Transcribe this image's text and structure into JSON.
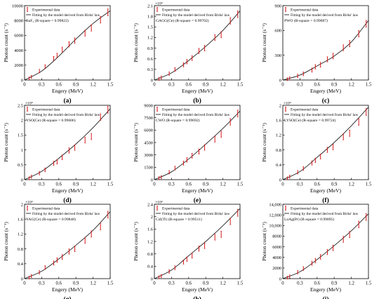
{
  "figure": {
    "colors": {
      "data": "#d7191c",
      "fit": "#222222",
      "axis": "#000000"
    },
    "panels": [
      {
        "letter": "(a)",
        "multiplier": "",
        "legend": [
          "Experimental data",
          "Fitting by the model derived from Birks' law"
        ],
        "r_label": "BaF₂ (R-square = 0.99822)",
        "chart_data": {
          "type": "scatter",
          "xlabel": "Engery (MeV)",
          "ylabel": "Photon count (s⁻¹)",
          "xlim": [
            0,
            1.5
          ],
          "ylim": [
            0,
            10000
          ],
          "xticks": [
            "0",
            "0.3",
            "0.6",
            "0.9",
            "1.2",
            "1.5"
          ],
          "yticks": [
            "0",
            "2000",
            "4000",
            "6000",
            "8000",
            "10000"
          ],
          "series": [
            {
              "name": "Experimental data",
              "x": [
                0.08,
                0.12,
                0.26,
                0.36,
                0.51,
                0.57,
                0.66,
                0.78,
                0.88,
                1.06,
                1.17,
                1.33,
                1.46
              ],
              "y": [
                220,
                420,
                1200,
                1800,
                2900,
                3300,
                4100,
                4800,
                5300,
                6300,
                7000,
                8100,
                9100
              ]
            },
            {
              "name": "Fitting by the model derived from Birks' law",
              "x": [
                0,
                0.3,
                0.6,
                0.9,
                1.2,
                1.5
              ],
              "y": [
                0,
                1200,
                3200,
                5500,
                7600,
                9300
              ]
            }
          ]
        }
      },
      {
        "letter": "(b)",
        "multiplier": "×10⁴",
        "legend": [
          "Experimental data",
          "Fitting by the model derived from Birks' law"
        ],
        "r_label": "GAGG(Ce) (R-square = 0.99702)",
        "chart_data": {
          "type": "scatter",
          "xlabel": "Engery (MeV)",
          "ylabel": "Photon count (s⁻¹)",
          "xlim": [
            0,
            1.5
          ],
          "ylim": [
            0,
            2.1
          ],
          "xticks": [
            "0",
            "0.3",
            "0.6",
            "0.9",
            "1.2",
            "1.5"
          ],
          "yticks": [
            "0",
            "0.3",
            "0.6",
            "0.9",
            "1.2",
            "1.5",
            "1.8",
            "2.1"
          ],
          "series": [
            {
              "name": "Experimental data",
              "x": [
                0.08,
                0.12,
                0.26,
                0.36,
                0.51,
                0.57,
                0.66,
                0.78,
                0.88,
                1.06,
                1.17,
                1.33,
                1.46
              ],
              "y": [
                0.03,
                0.07,
                0.18,
                0.3,
                0.43,
                0.52,
                0.62,
                0.82,
                0.9,
                1.2,
                1.28,
                1.67,
                1.86
              ]
            },
            {
              "name": "Fitting by the model derived from Birks' law",
              "x": [
                0,
                0.3,
                0.6,
                0.9,
                1.2,
                1.5
              ],
              "y": [
                0,
                0.2,
                0.55,
                0.95,
                1.4,
                1.95
              ]
            }
          ]
        }
      },
      {
        "letter": "(c)",
        "multiplier": "",
        "legend": [
          "Experimental data",
          "Fitting by the model derived from Birks' law"
        ],
        "r_label": "PWO (R-square = 0.99687)",
        "chart_data": {
          "type": "scatter",
          "xlabel": "Engery (MeV)",
          "ylabel": "Photon count (s⁻¹)",
          "xlim": [
            0,
            1.5
          ],
          "ylim": [
            0,
            900
          ],
          "xticks": [
            "0",
            "0.3",
            "0.6",
            "0.9",
            "1.2",
            "1.5"
          ],
          "yticks": [
            "0",
            "300",
            "600",
            "900"
          ],
          "series": [
            {
              "name": "Experimental data",
              "x": [
                0.08,
                0.12,
                0.26,
                0.36,
                0.51,
                0.57,
                0.66,
                0.78,
                0.88,
                1.06,
                1.17,
                1.33,
                1.46
              ],
              "y": [
                10,
                20,
                50,
                75,
                120,
                160,
                185,
                250,
                290,
                390,
                440,
                560,
                680
              ]
            },
            {
              "name": "Fitting by the model derived from Birks' law",
              "x": [
                0,
                0.3,
                0.6,
                0.9,
                1.2,
                1.5
              ],
              "y": [
                0,
                60,
                170,
                290,
                460,
                720
              ]
            }
          ]
        }
      },
      {
        "letter": "(d)",
        "multiplier": "×10⁴",
        "legend": [
          "Experimental data",
          "Fitting by the model derived from Birks' law"
        ],
        "r_label": "YSO(Ce) (R-square = 0.99606)",
        "chart_data": {
          "type": "scatter",
          "xlabel": "Engery (MeV)",
          "ylabel": "Photon count (s⁻¹)",
          "xlim": [
            0,
            1.5
          ],
          "ylim": [
            0,
            2.5
          ],
          "xticks": [
            "0",
            "0.3",
            "0.6",
            "0.9",
            "1.2",
            "1.5"
          ],
          "yticks": [
            "0",
            "0.5",
            "1",
            "1.5",
            "2",
            "2.5"
          ],
          "series": [
            {
              "name": "Experimental data",
              "x": [
                0.08,
                0.12,
                0.26,
                0.36,
                0.51,
                0.57,
                0.66,
                0.78,
                0.88,
                1.06,
                1.17,
                1.33,
                1.46
              ],
              "y": [
                0.05,
                0.1,
                0.22,
                0.33,
                0.55,
                0.6,
                0.75,
                0.98,
                1.08,
                1.33,
                1.45,
                2.1,
                2.35
              ]
            },
            {
              "name": "Fitting by the model derived from Birks' law",
              "x": [
                0,
                0.3,
                0.6,
                0.9,
                1.2,
                1.5
              ],
              "y": [
                0,
                0.28,
                0.72,
                1.2,
                1.75,
                2.38
              ]
            }
          ]
        }
      },
      {
        "letter": "(e)",
        "multiplier": "",
        "legend": [
          "Experimental data",
          "Fitting by the model derived from Birks' law"
        ],
        "r_label": "CWO (R-square = 0.99692)",
        "chart_data": {
          "type": "scatter",
          "xlabel": "Engery (MeV)",
          "ylabel": "Photon count (s⁻¹)",
          "xlim": [
            0,
            1.5
          ],
          "ylim": [
            0,
            9000
          ],
          "xticks": [
            "0",
            "0.3",
            "0.6",
            "0.9",
            "1.2",
            "1.5"
          ],
          "yticks": [
            "0",
            "1500",
            "3000",
            "4500",
            "6000",
            "7500",
            "9000"
          ],
          "series": [
            {
              "name": "Experimental data",
              "x": [
                0.08,
                0.12,
                0.26,
                0.36,
                0.51,
                0.57,
                0.66,
                0.78,
                0.88,
                1.06,
                1.17,
                1.33,
                1.46
              ],
              "y": [
                200,
                300,
                900,
                1400,
                2000,
                2400,
                2900,
                3400,
                3900,
                4900,
                5500,
                7000,
                8000
              ]
            },
            {
              "name": "Fitting by the model derived from Birks' law",
              "x": [
                0,
                0.3,
                0.6,
                0.9,
                1.2,
                1.5
              ],
              "y": [
                0,
                950,
                2500,
                4300,
                6200,
                8300
              ]
            }
          ]
        }
      },
      {
        "letter": "(f)",
        "multiplier": "×10⁴",
        "legend": [
          "Experimental data",
          "Fitting by the model derived from Birks' law"
        ],
        "r_label": "LYSO(Ce) (R-square = 0.99724)",
        "chart_data": {
          "type": "scatter",
          "xlabel": "Engery (MeV)",
          "ylabel": "Photon count (s⁻¹)",
          "xlim": [
            0,
            1.5
          ],
          "ylim": [
            0,
            2
          ],
          "xticks": [
            "0",
            "0.3",
            "0.6",
            "0.9",
            "1.2",
            "1.5"
          ],
          "yticks": [
            "0",
            "0.4",
            "0.8",
            "1.2",
            "1.6",
            "2"
          ],
          "series": [
            {
              "name": "Experimental data",
              "x": [
                0.08,
                0.12,
                0.26,
                0.36,
                0.51,
                0.57,
                0.66,
                0.78,
                0.88,
                1.06,
                1.17,
                1.33,
                1.46
              ],
              "y": [
                0.04,
                0.08,
                0.2,
                0.3,
                0.45,
                0.52,
                0.62,
                0.8,
                0.88,
                1.15,
                1.25,
                1.55,
                1.82
              ]
            },
            {
              "name": "Fitting by the model derived from Birks' law",
              "x": [
                0,
                0.3,
                0.6,
                0.9,
                1.2,
                1.5
              ],
              "y": [
                0,
                0.22,
                0.6,
                1.0,
                1.45,
                1.95
              ]
            }
          ]
        }
      },
      {
        "letter": "(g)",
        "multiplier": "×10⁴",
        "legend": [
          "Experimental data",
          "Fitting by the model derived from Birks' law"
        ],
        "r_label": "YAG(Ce) (R-square = 0.99848)",
        "chart_data": {
          "type": "scatter",
          "xlabel": "Engery (MeV)",
          "ylabel": "Photon count (s⁻¹)",
          "xlim": [
            0,
            1.5
          ],
          "ylim": [
            0,
            2
          ],
          "xticks": [
            "0",
            "0.3",
            "0.6",
            "0.9",
            "1.2",
            "1.5"
          ],
          "yticks": [
            "0",
            "0.4",
            "0.8",
            "1.2",
            "1.6",
            "2"
          ],
          "series": [
            {
              "name": "Experimental data",
              "x": [
                0.08,
                0.12,
                0.26,
                0.36,
                0.51,
                0.57,
                0.66,
                0.78,
                0.88,
                1.06,
                1.17,
                1.33,
                1.46
              ],
              "y": [
                0.03,
                0.07,
                0.17,
                0.3,
                0.42,
                0.5,
                0.58,
                0.73,
                0.8,
                1.03,
                1.2,
                1.4,
                1.72
              ]
            },
            {
              "name": "Fitting by the model derived from Birks' law",
              "x": [
                0,
                0.3,
                0.6,
                0.9,
                1.2,
                1.5
              ],
              "y": [
                0,
                0.2,
                0.53,
                0.9,
                1.3,
                1.8
              ]
            }
          ]
        }
      },
      {
        "letter": "(h)",
        "multiplier": "×10⁴",
        "legend": [
          "Experimental data",
          "Fitting by the model derived from Birks' law"
        ],
        "r_label": "CsI(Tl) (R-square = 0.99511)",
        "chart_data": {
          "type": "scatter",
          "xlabel": "Engery (MeV)",
          "ylabel": "Photon count (s⁻¹)",
          "xlim": [
            0,
            1.5
          ],
          "ylim": [
            0,
            2.6
          ],
          "xticks": [
            "0",
            "0.3",
            "0.6",
            "0.9",
            "1.2",
            "1.5"
          ],
          "yticks": [
            "0",
            "0.4",
            "0.8",
            "1.2",
            "1.6",
            "2",
            "2.4"
          ],
          "series": [
            {
              "name": "Experimental data",
              "x": [
                0.08,
                0.12,
                0.26,
                0.36,
                0.51,
                0.57,
                0.66,
                0.78,
                0.88,
                1.06,
                1.17,
                1.33,
                1.46
              ],
              "y": [
                0.05,
                0.09,
                0.25,
                0.38,
                0.58,
                0.68,
                0.8,
                1.05,
                1.15,
                1.45,
                1.55,
                2.0,
                2.3
              ]
            },
            {
              "name": "Fitting by the model derived from Birks' law",
              "x": [
                0,
                0.3,
                0.6,
                0.9,
                1.2,
                1.5
              ],
              "y": [
                0,
                0.3,
                0.8,
                1.3,
                1.85,
                2.45
              ]
            }
          ]
        }
      },
      {
        "letter": "(i)",
        "multiplier": "",
        "legend": [
          "Experimental data",
          "Fitting by the model derived from Birks' law"
        ],
        "r_label": "LuAg(Pr) (R-square = 0.99895)",
        "chart_data": {
          "type": "scatter",
          "xlabel": "Engery (MeV)",
          "ylabel": "Photon count (s⁻¹)",
          "xlim": [
            0,
            1.5
          ],
          "ylim": [
            0,
            14000
          ],
          "xticks": [
            "0",
            "0.3",
            "0.6",
            "0.9",
            "1.2",
            "1.5"
          ],
          "yticks": [
            "0",
            "2000",
            "4000",
            "6000",
            "8000",
            "10,000",
            "12,000",
            "14,000"
          ],
          "series": [
            {
              "name": "Experimental data",
              "x": [
                0.08,
                0.12,
                0.26,
                0.36,
                0.51,
                0.57,
                0.66,
                0.78,
                0.88,
                1.06,
                1.17,
                1.33,
                1.46
              ],
              "y": [
                200,
                400,
                1200,
                1900,
                2900,
                3400,
                4100,
                5000,
                5800,
                7400,
                8300,
                10200,
                11600
              ]
            },
            {
              "name": "Fitting by the model derived from Birks' law",
              "x": [
                0,
                0.3,
                0.6,
                0.9,
                1.2,
                1.5
              ],
              "y": [
                0,
                1300,
                3600,
                6200,
                9000,
                12200
              ]
            }
          ]
        }
      }
    ]
  }
}
